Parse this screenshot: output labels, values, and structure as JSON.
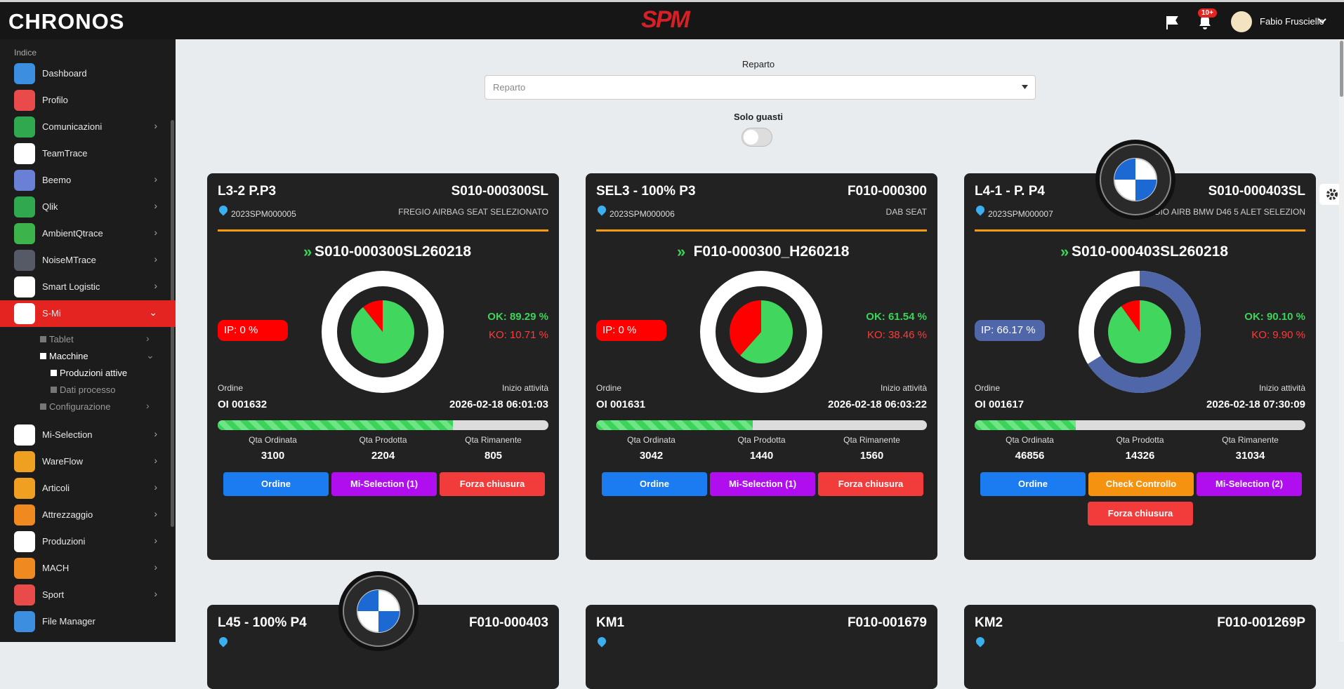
{
  "header": {
    "brand": "CHRONOS",
    "logo": "SPM",
    "badge": "10+",
    "user": "Fabio Frusciello"
  },
  "sidebar": {
    "section": "Indice",
    "items_top": [
      {
        "label": "Dashboard",
        "color": "#3b8ee0",
        "expandable": false
      },
      {
        "label": "Profilo",
        "color": "#e94b4b",
        "expandable": false
      },
      {
        "label": "Comunicazioni",
        "color": "#2fa84f",
        "expandable": true
      },
      {
        "label": "TeamTrace",
        "color": "#ffffff",
        "expandable": false
      },
      {
        "label": "Beemo",
        "color": "#6a7fd6",
        "expandable": true
      },
      {
        "label": "Qlik",
        "color": "#2fa84f",
        "expandable": true
      },
      {
        "label": "AmbientQtrace",
        "color": "#3cb44b",
        "expandable": true
      },
      {
        "label": "NoiseMTrace",
        "color": "#555a66",
        "expandable": true
      },
      {
        "label": "Smart Logistic",
        "color": "#ffffff",
        "expandable": true
      },
      {
        "label": "S-Mi",
        "color": "#ffffff",
        "expandable": true,
        "active": true
      }
    ],
    "submenu": [
      {
        "label": "Tablet",
        "level": 1
      },
      {
        "label": "Macchine",
        "level": 1
      },
      {
        "label": "Produzioni attive",
        "level": 2
      },
      {
        "label": "Dati processo",
        "level": 2
      },
      {
        "label": "Configurazione",
        "level": 1
      }
    ],
    "items_bottom": [
      {
        "label": "Mi-Selection",
        "color": "#ffffff",
        "expandable": true
      },
      {
        "label": "WareFlow",
        "color": "#f0a020",
        "expandable": true
      },
      {
        "label": "Articoli",
        "color": "#f0a020",
        "expandable": true
      },
      {
        "label": "Attrezzaggio",
        "color": "#f08a20",
        "expandable": true
      },
      {
        "label": "Produzioni",
        "color": "#ffffff",
        "expandable": true
      },
      {
        "label": "MACH",
        "color": "#f08a20",
        "expandable": true
      },
      {
        "label": "Sport",
        "color": "#e94b4b",
        "expandable": true
      },
      {
        "label": "File Manager",
        "color": "#3b8ee0",
        "expandable": false
      }
    ]
  },
  "filters": {
    "reparto_label": "Reparto",
    "reparto_placeholder": "Reparto",
    "solo_guasti": "Solo guasti"
  },
  "labels": {
    "order": "Ordine",
    "start": "Inizio attività",
    "ordered": "Qta Ordinata",
    "produced": "Qta Prodotta",
    "remaining": "Qta Rimanente"
  },
  "cards": [
    {
      "title": "L3-2 P.P3",
      "code": "S010-000300SL",
      "lot": "2023SPM000005",
      "description": "FREGIO AIRBAG SEAT SELEZIONATO",
      "production": "S010-000300SL260218",
      "ip": {
        "value": 0,
        "label": "IP: 0 %",
        "color": "#ff0000"
      },
      "ok": {
        "value": 89.29,
        "label": "OK: 89.29 %"
      },
      "ko": {
        "value": 10.71,
        "label": "KO: 10.71 %"
      },
      "order": "OI 001632",
      "start": "2026-02-18 06:01:03",
      "ordered": 3100,
      "produced": 2204,
      "remaining": 805,
      "buttons": [
        {
          "label": "Ordine",
          "color": "#1b7cf2"
        },
        {
          "label": "Mi-Selection (1)",
          "color": "#b10ef0"
        },
        {
          "label": "Forza chiusura",
          "color": "#f23b3b"
        }
      ]
    },
    {
      "title": "SEL3 - 100% P3",
      "code": "F010-000300",
      "lot": "2023SPM000006",
      "description": "DAB SEAT",
      "production": "F010-000300_H260218",
      "ip": {
        "value": 0,
        "label": "IP: 0 %",
        "color": "#ff0000"
      },
      "ok": {
        "value": 61.54,
        "label": "OK: 61.54 %"
      },
      "ko": {
        "value": 38.46,
        "label": "KO: 38.46 %"
      },
      "order": "OI 001631",
      "start": "2026-02-18 06:03:22",
      "ordered": 3042,
      "produced": 1440,
      "remaining": 1560,
      "buttons": [
        {
          "label": "Ordine",
          "color": "#1b7cf2"
        },
        {
          "label": "Mi-Selection (1)",
          "color": "#b10ef0"
        },
        {
          "label": "Forza chiusura",
          "color": "#f23b3b"
        }
      ]
    },
    {
      "title": "L4-1 - P. P4",
      "code": "S010-000403SL",
      "lot": "2023SPM000007",
      "description": "FREGIO AIRB BMW D46 5 ALET SELEZION",
      "production": "S010-000403SL260218",
      "ip": {
        "value": 66.17,
        "label": "IP: 66.17 %",
        "color": "#4f66a8"
      },
      "ok": {
        "value": 90.1,
        "label": "OK: 90.10 %"
      },
      "ko": {
        "value": 9.9,
        "label": "KO: 9.90 %"
      },
      "order": "OI 001617",
      "start": "2026-02-18 07:30:09",
      "ordered": 46856,
      "produced": 14326,
      "remaining": 31034,
      "buttons": [
        {
          "label": "Ordine",
          "color": "#1b7cf2"
        },
        {
          "label": "Check Controllo",
          "color": "#f5920f"
        },
        {
          "label": "Mi-Selection (2)",
          "color": "#b10ef0"
        },
        {
          "label": "Forza chiusura",
          "color": "#f23b3b"
        }
      ]
    }
  ],
  "more_cards": [
    {
      "title": "L45 - 100% P4",
      "code": "F010-000403"
    },
    {
      "title": "KM1",
      "code": "F010-001679"
    },
    {
      "title": "KM2",
      "code": "F010-001269P"
    }
  ]
}
